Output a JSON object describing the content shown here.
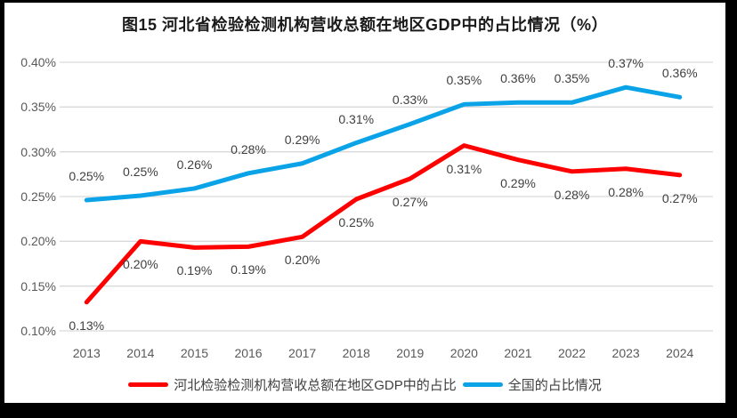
{
  "title": "图15 河北省检验检测机构营收总额在地区GDP中的占比情况（%）",
  "colors": {
    "background": "#FFFFFF",
    "frame": "#000000",
    "gridline": "#D9D9D9",
    "axis_text": "#595959",
    "data_label_text": "#404040",
    "title_text": "#1A1A1A",
    "hebei_line": "#FE0000",
    "national_line": "#0AA3E8"
  },
  "chart_data": {
    "type": "line",
    "title": "图15 河北省检验检测机构营收总额在地区GDP中的占比情况（%）",
    "unit": "%",
    "categories": [
      "2013",
      "2014",
      "2015",
      "2016",
      "2017",
      "2018",
      "2019",
      "2020",
      "2021",
      "2022",
      "2023",
      "2024"
    ],
    "ylim": [
      0.1,
      0.4
    ],
    "yticks": [
      {
        "value": 0.4,
        "label": "0.40%"
      },
      {
        "value": 0.35,
        "label": "0.35%"
      },
      {
        "value": 0.3,
        "label": "0.30%"
      },
      {
        "value": 0.25,
        "label": "0.25%"
      },
      {
        "value": 0.2,
        "label": "0.20%"
      },
      {
        "value": 0.15,
        "label": "0.15%"
      },
      {
        "value": 0.1,
        "label": "0.10%"
      }
    ],
    "grid": true,
    "legend_position": "bottom",
    "series": [
      {
        "name": "河北检验检测机构营收总额在地区GDP中的占比",
        "key": "hebei",
        "color": "#FE0000",
        "values": [
          0.13,
          0.2,
          0.19,
          0.19,
          0.2,
          0.25,
          0.27,
          0.31,
          0.29,
          0.28,
          0.28,
          0.27
        ],
        "point_labels": [
          "0.13%",
          "0.20%",
          "0.19%",
          "0.19%",
          "0.20%",
          "0.25%",
          "0.27%",
          "0.31%",
          "0.29%",
          "0.28%",
          "0.28%",
          "0.27%"
        ],
        "plot_values": [
          0.132,
          0.2,
          0.193,
          0.194,
          0.205,
          0.247,
          0.27,
          0.307,
          0.291,
          0.278,
          0.281,
          0.274
        ],
        "label_position": "below"
      },
      {
        "name": "全国的占比情况",
        "key": "national",
        "color": "#0AA3E8",
        "values": [
          0.25,
          0.25,
          0.26,
          0.28,
          0.29,
          0.31,
          0.33,
          0.35,
          0.36,
          0.35,
          0.37,
          0.36
        ],
        "point_labels": [
          "0.25%",
          "0.25%",
          "0.26%",
          "0.28%",
          "0.29%",
          "0.31%",
          "0.33%",
          "0.35%",
          "0.36%",
          "0.35%",
          "0.37%",
          "0.36%"
        ],
        "plot_values": [
          0.246,
          0.251,
          0.259,
          0.276,
          0.287,
          0.31,
          0.331,
          0.353,
          0.355,
          0.355,
          0.372,
          0.361
        ],
        "label_position": "above"
      }
    ]
  }
}
